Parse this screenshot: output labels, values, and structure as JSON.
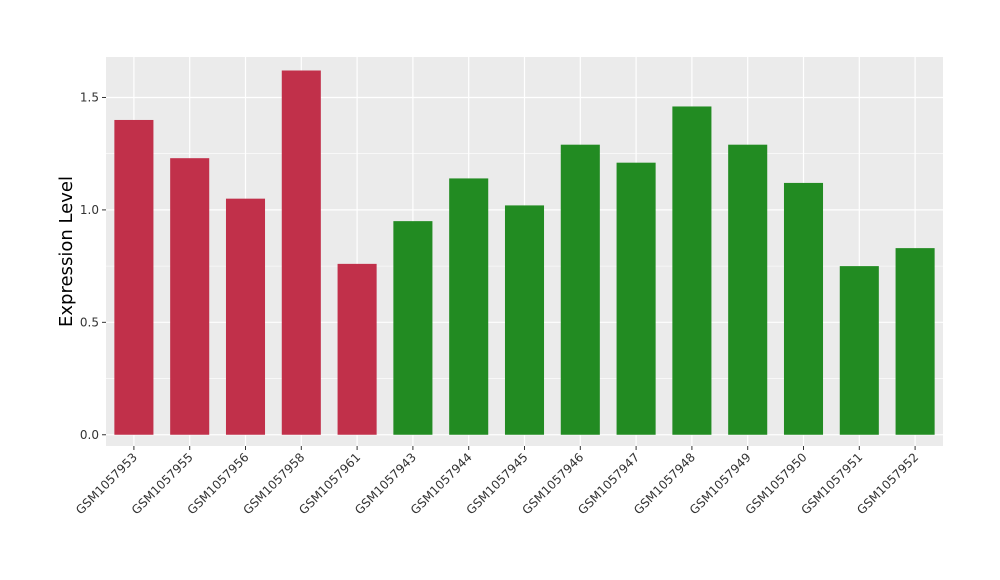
{
  "chart_data": {
    "type": "bar",
    "title": "",
    "xlabel": "",
    "ylabel": "Expression Level",
    "ylim": [
      -0.05,
      1.68
    ],
    "yticks": [
      0.0,
      0.5,
      1.0,
      1.5
    ],
    "ytick_labels": [
      "0.0",
      "0.5",
      "1.0",
      "1.5"
    ],
    "grid": true,
    "background": "#EBEBEB",
    "categories": [
      "GSM1057953",
      "GSM1057955",
      "GSM1057956",
      "GSM1057958",
      "GSM1057961",
      "GSM1057943",
      "GSM1057944",
      "GSM1057945",
      "GSM1057946",
      "GSM1057947",
      "GSM1057948",
      "GSM1057949",
      "GSM1057950",
      "GSM1057951",
      "GSM1057952"
    ],
    "values": [
      1.4,
      1.23,
      1.05,
      1.62,
      0.76,
      0.95,
      1.14,
      1.02,
      1.29,
      1.21,
      1.46,
      1.29,
      1.12,
      0.75,
      0.83
    ],
    "colors": [
      "#C1304A",
      "#C1304A",
      "#C1304A",
      "#C1304A",
      "#C1304A",
      "#228B22",
      "#228B22",
      "#228B22",
      "#228B22",
      "#228B22",
      "#228B22",
      "#228B22",
      "#228B22",
      "#228B22",
      "#228B22"
    ]
  }
}
